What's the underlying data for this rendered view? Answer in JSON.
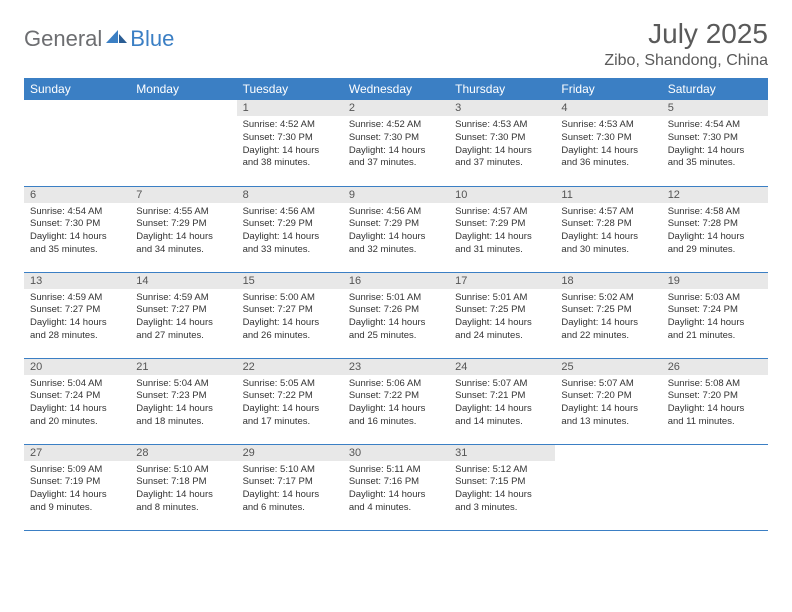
{
  "brand": {
    "part1": "General",
    "part2": "Blue"
  },
  "title": "July 2025",
  "location": "Zibo, Shandong, China",
  "colors": {
    "header_bg": "#3b7fc4",
    "header_text": "#ffffff",
    "daynum_bg": "#e8e8e8",
    "border": "#3b7fc4",
    "title_color": "#5a5a5a",
    "logo_gray": "#6d6e71",
    "logo_blue": "#3b7fc4"
  },
  "days_of_week": [
    "Sunday",
    "Monday",
    "Tuesday",
    "Wednesday",
    "Thursday",
    "Friday",
    "Saturday"
  ],
  "weeks": [
    [
      null,
      null,
      {
        "n": "1",
        "sr": "Sunrise: 4:52 AM",
        "ss": "Sunset: 7:30 PM",
        "dl": "Daylight: 14 hours and 38 minutes."
      },
      {
        "n": "2",
        "sr": "Sunrise: 4:52 AM",
        "ss": "Sunset: 7:30 PM",
        "dl": "Daylight: 14 hours and 37 minutes."
      },
      {
        "n": "3",
        "sr": "Sunrise: 4:53 AM",
        "ss": "Sunset: 7:30 PM",
        "dl": "Daylight: 14 hours and 37 minutes."
      },
      {
        "n": "4",
        "sr": "Sunrise: 4:53 AM",
        "ss": "Sunset: 7:30 PM",
        "dl": "Daylight: 14 hours and 36 minutes."
      },
      {
        "n": "5",
        "sr": "Sunrise: 4:54 AM",
        "ss": "Sunset: 7:30 PM",
        "dl": "Daylight: 14 hours and 35 minutes."
      }
    ],
    [
      {
        "n": "6",
        "sr": "Sunrise: 4:54 AM",
        "ss": "Sunset: 7:30 PM",
        "dl": "Daylight: 14 hours and 35 minutes."
      },
      {
        "n": "7",
        "sr": "Sunrise: 4:55 AM",
        "ss": "Sunset: 7:29 PM",
        "dl": "Daylight: 14 hours and 34 minutes."
      },
      {
        "n": "8",
        "sr": "Sunrise: 4:56 AM",
        "ss": "Sunset: 7:29 PM",
        "dl": "Daylight: 14 hours and 33 minutes."
      },
      {
        "n": "9",
        "sr": "Sunrise: 4:56 AM",
        "ss": "Sunset: 7:29 PM",
        "dl": "Daylight: 14 hours and 32 minutes."
      },
      {
        "n": "10",
        "sr": "Sunrise: 4:57 AM",
        "ss": "Sunset: 7:29 PM",
        "dl": "Daylight: 14 hours and 31 minutes."
      },
      {
        "n": "11",
        "sr": "Sunrise: 4:57 AM",
        "ss": "Sunset: 7:28 PM",
        "dl": "Daylight: 14 hours and 30 minutes."
      },
      {
        "n": "12",
        "sr": "Sunrise: 4:58 AM",
        "ss": "Sunset: 7:28 PM",
        "dl": "Daylight: 14 hours and 29 minutes."
      }
    ],
    [
      {
        "n": "13",
        "sr": "Sunrise: 4:59 AM",
        "ss": "Sunset: 7:27 PM",
        "dl": "Daylight: 14 hours and 28 minutes."
      },
      {
        "n": "14",
        "sr": "Sunrise: 4:59 AM",
        "ss": "Sunset: 7:27 PM",
        "dl": "Daylight: 14 hours and 27 minutes."
      },
      {
        "n": "15",
        "sr": "Sunrise: 5:00 AM",
        "ss": "Sunset: 7:27 PM",
        "dl": "Daylight: 14 hours and 26 minutes."
      },
      {
        "n": "16",
        "sr": "Sunrise: 5:01 AM",
        "ss": "Sunset: 7:26 PM",
        "dl": "Daylight: 14 hours and 25 minutes."
      },
      {
        "n": "17",
        "sr": "Sunrise: 5:01 AM",
        "ss": "Sunset: 7:25 PM",
        "dl": "Daylight: 14 hours and 24 minutes."
      },
      {
        "n": "18",
        "sr": "Sunrise: 5:02 AM",
        "ss": "Sunset: 7:25 PM",
        "dl": "Daylight: 14 hours and 22 minutes."
      },
      {
        "n": "19",
        "sr": "Sunrise: 5:03 AM",
        "ss": "Sunset: 7:24 PM",
        "dl": "Daylight: 14 hours and 21 minutes."
      }
    ],
    [
      {
        "n": "20",
        "sr": "Sunrise: 5:04 AM",
        "ss": "Sunset: 7:24 PM",
        "dl": "Daylight: 14 hours and 20 minutes."
      },
      {
        "n": "21",
        "sr": "Sunrise: 5:04 AM",
        "ss": "Sunset: 7:23 PM",
        "dl": "Daylight: 14 hours and 18 minutes."
      },
      {
        "n": "22",
        "sr": "Sunrise: 5:05 AM",
        "ss": "Sunset: 7:22 PM",
        "dl": "Daylight: 14 hours and 17 minutes."
      },
      {
        "n": "23",
        "sr": "Sunrise: 5:06 AM",
        "ss": "Sunset: 7:22 PM",
        "dl": "Daylight: 14 hours and 16 minutes."
      },
      {
        "n": "24",
        "sr": "Sunrise: 5:07 AM",
        "ss": "Sunset: 7:21 PM",
        "dl": "Daylight: 14 hours and 14 minutes."
      },
      {
        "n": "25",
        "sr": "Sunrise: 5:07 AM",
        "ss": "Sunset: 7:20 PM",
        "dl": "Daylight: 14 hours and 13 minutes."
      },
      {
        "n": "26",
        "sr": "Sunrise: 5:08 AM",
        "ss": "Sunset: 7:20 PM",
        "dl": "Daylight: 14 hours and 11 minutes."
      }
    ],
    [
      {
        "n": "27",
        "sr": "Sunrise: 5:09 AM",
        "ss": "Sunset: 7:19 PM",
        "dl": "Daylight: 14 hours and 9 minutes."
      },
      {
        "n": "28",
        "sr": "Sunrise: 5:10 AM",
        "ss": "Sunset: 7:18 PM",
        "dl": "Daylight: 14 hours and 8 minutes."
      },
      {
        "n": "29",
        "sr": "Sunrise: 5:10 AM",
        "ss": "Sunset: 7:17 PM",
        "dl": "Daylight: 14 hours and 6 minutes."
      },
      {
        "n": "30",
        "sr": "Sunrise: 5:11 AM",
        "ss": "Sunset: 7:16 PM",
        "dl": "Daylight: 14 hours and 4 minutes."
      },
      {
        "n": "31",
        "sr": "Sunrise: 5:12 AM",
        "ss": "Sunset: 7:15 PM",
        "dl": "Daylight: 14 hours and 3 minutes."
      },
      null,
      null
    ]
  ]
}
